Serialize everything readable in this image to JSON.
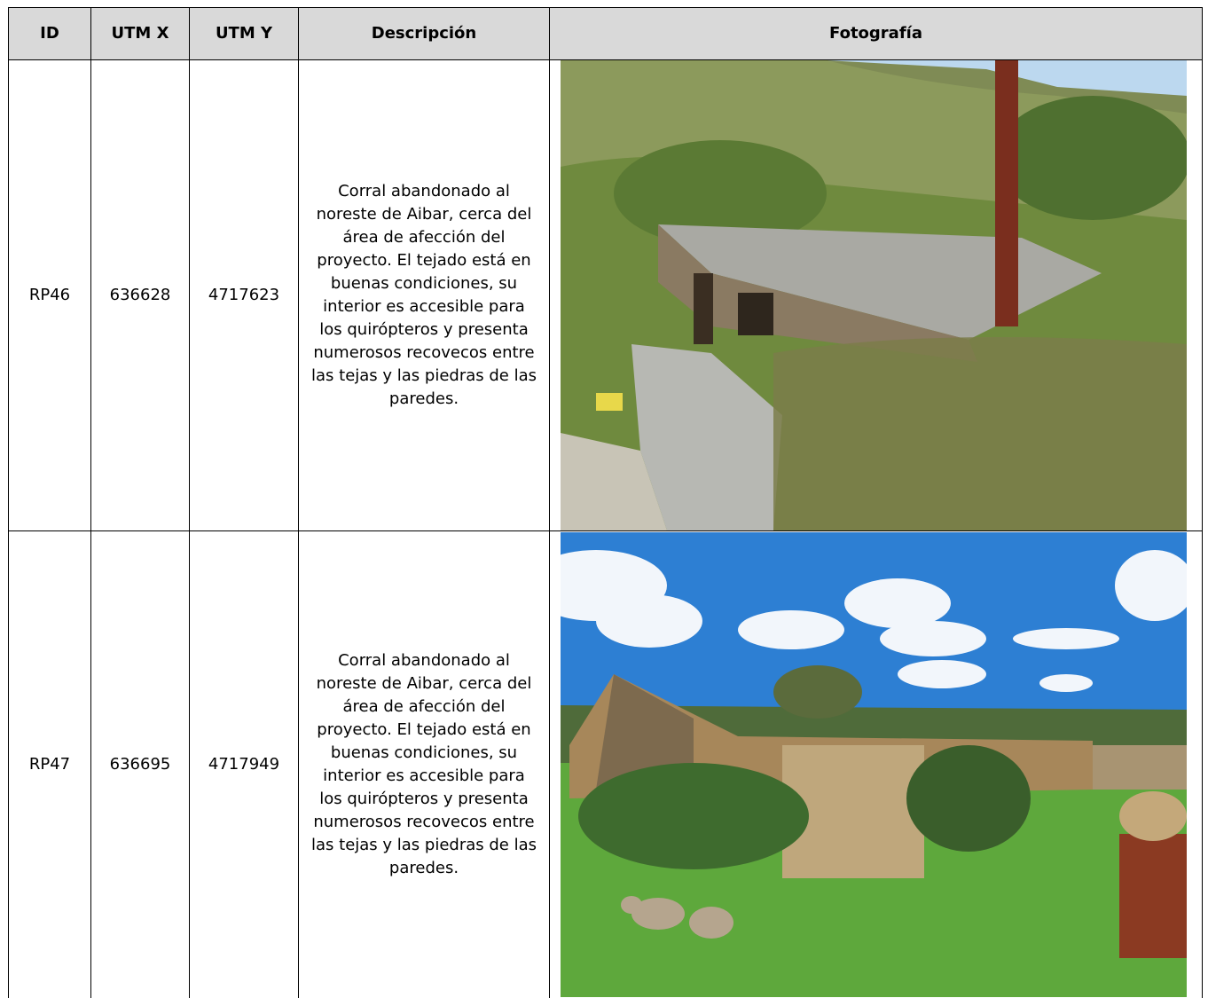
{
  "table": {
    "header": [
      "ID",
      "UTM X",
      "UTM Y",
      "Descripción",
      "Fotografía"
    ],
    "rows": [
      [
        "RP46",
        636628,
        4717623,
        "Corral abandonado al noreste de Aibar, cerca del área de afección del proyecto. El tejado está en buenas condiciones, su interior es accesible para los quirópteros y presenta numerosos recovecos entre las tejas y las piedras de las paredes."
      ],
      [
        "RP47",
        636695,
        4717949,
        "Corral abandonado al noreste de Aibar, cerca del área de afección del proyecto. El tejado está en buenas condiciones, su interior es accesible para los quirópteros y presenta numerosos recovecos entre las tejas y las piedras de las paredes."
      ]
    ]
  }
}
